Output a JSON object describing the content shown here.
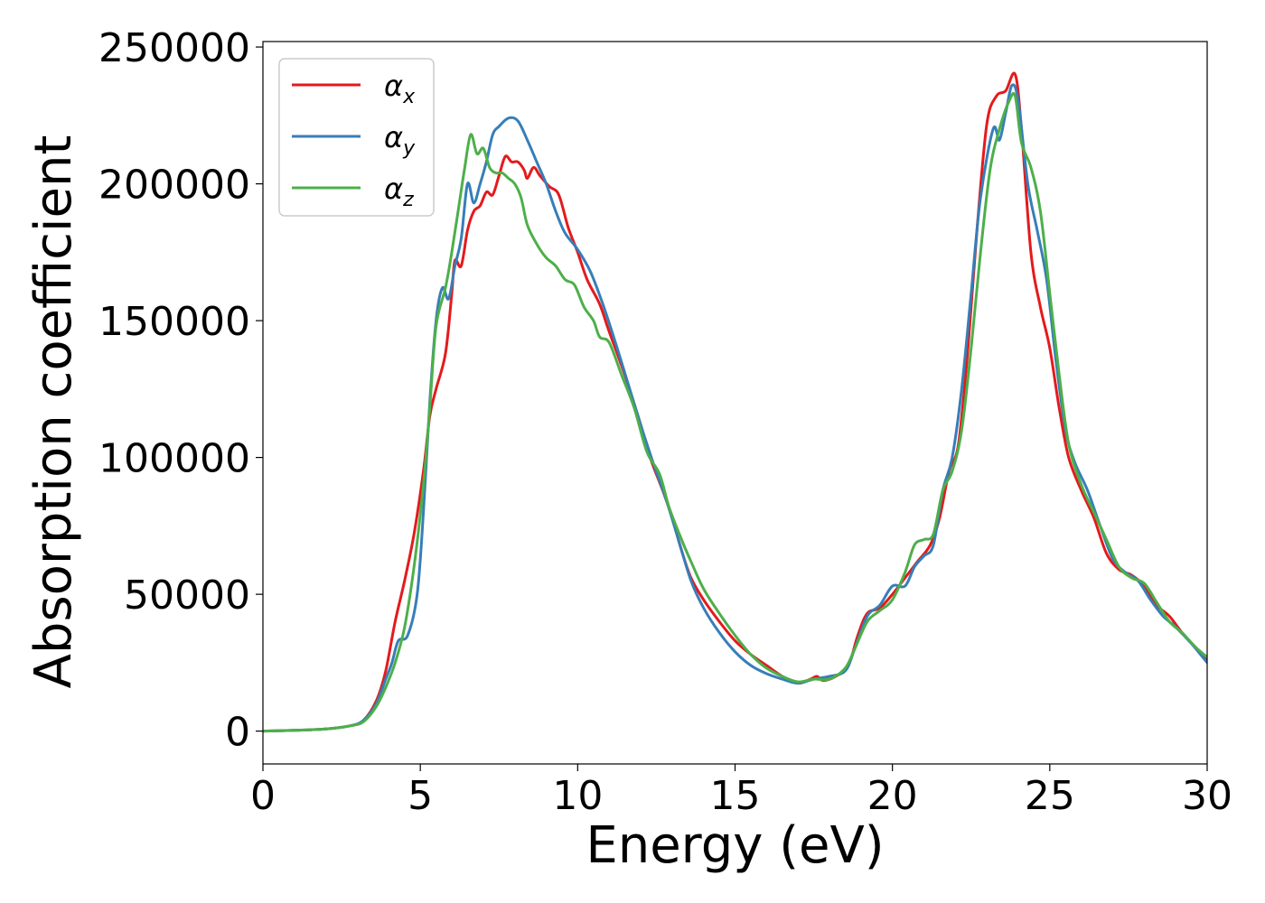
{
  "chart_data": {
    "type": "line",
    "xlabel": "Energy (eV)",
    "ylabel": "Absorption coefficient",
    "xlim": [
      0,
      30
    ],
    "ylim": [
      -12000,
      252000
    ],
    "xticks": [
      0,
      5,
      10,
      15,
      20,
      25,
      30
    ],
    "xtick_labels": [
      "0",
      "5",
      "10",
      "15",
      "20",
      "25",
      "30"
    ],
    "yticks": [
      0,
      50000,
      100000,
      150000,
      200000,
      250000
    ],
    "ytick_labels": [
      "0",
      "50000",
      "100000",
      "150000",
      "200000",
      "250000"
    ],
    "grid": false,
    "legend_position": "top-left",
    "series": [
      {
        "name": "α",
        "subscript": "x",
        "color": "#e41a1c",
        "points": [
          [
            0,
            0
          ],
          [
            1,
            300
          ],
          [
            2,
            800
          ],
          [
            2.8,
            2000
          ],
          [
            3.2,
            4000
          ],
          [
            3.6,
            11000
          ],
          [
            3.9,
            22000
          ],
          [
            4.2,
            40000
          ],
          [
            4.5,
            55000
          ],
          [
            4.8,
            72000
          ],
          [
            5.1,
            95000
          ],
          [
            5.3,
            115000
          ],
          [
            5.5,
            125000
          ],
          [
            5.8,
            138000
          ],
          [
            6.0,
            160000
          ],
          [
            6.1,
            172000
          ],
          [
            6.3,
            170000
          ],
          [
            6.5,
            183000
          ],
          [
            6.7,
            190000
          ],
          [
            6.9,
            192000
          ],
          [
            7.1,
            197000
          ],
          [
            7.3,
            196000
          ],
          [
            7.5,
            203000
          ],
          [
            7.7,
            210000
          ],
          [
            7.9,
            208000
          ],
          [
            8.1,
            208000
          ],
          [
            8.3,
            205000
          ],
          [
            8.4,
            202000
          ],
          [
            8.6,
            206000
          ],
          [
            8.8,
            203000
          ],
          [
            9.1,
            199000
          ],
          [
            9.4,
            196000
          ],
          [
            9.7,
            184000
          ],
          [
            10.0,
            175000
          ],
          [
            10.3,
            165000
          ],
          [
            10.7,
            156000
          ],
          [
            11.0,
            146000
          ],
          [
            11.5,
            130000
          ],
          [
            12.0,
            112000
          ],
          [
            12.3,
            100000
          ],
          [
            12.7,
            88000
          ],
          [
            13.0,
            78000
          ],
          [
            13.3,
            66000
          ],
          [
            13.6,
            56000
          ],
          [
            14.0,
            48000
          ],
          [
            14.5,
            40000
          ],
          [
            15.0,
            33000
          ],
          [
            15.5,
            28000
          ],
          [
            16.0,
            24000
          ],
          [
            16.5,
            20000
          ],
          [
            17.0,
            17500
          ],
          [
            17.4,
            19000
          ],
          [
            17.6,
            20000
          ],
          [
            17.8,
            18500
          ],
          [
            18.2,
            20000
          ],
          [
            18.6,
            24000
          ],
          [
            18.9,
            35000
          ],
          [
            19.2,
            43000
          ],
          [
            19.6,
            45000
          ],
          [
            20.0,
            50000
          ],
          [
            20.4,
            56000
          ],
          [
            20.8,
            62000
          ],
          [
            21.2,
            68000
          ],
          [
            21.5,
            78000
          ],
          [
            21.8,
            95000
          ],
          [
            22.1,
            105000
          ],
          [
            22.4,
            140000
          ],
          [
            22.7,
            185000
          ],
          [
            23.0,
            222000
          ],
          [
            23.3,
            232000
          ],
          [
            23.6,
            234000
          ],
          [
            23.9,
            240000
          ],
          [
            24.1,
            220000
          ],
          [
            24.4,
            175000
          ],
          [
            24.7,
            155000
          ],
          [
            25.0,
            140000
          ],
          [
            25.3,
            118000
          ],
          [
            25.6,
            100000
          ],
          [
            26.0,
            88000
          ],
          [
            26.4,
            78000
          ],
          [
            26.8,
            65000
          ],
          [
            27.2,
            59000
          ],
          [
            27.6,
            57000
          ],
          [
            28.0,
            53000
          ],
          [
            28.4,
            46000
          ],
          [
            28.8,
            42000
          ],
          [
            29.2,
            36000
          ],
          [
            29.6,
            31000
          ],
          [
            30.0,
            26000
          ]
        ]
      },
      {
        "name": "α",
        "subscript": "y",
        "color": "#377eb8",
        "points": [
          [
            0,
            0
          ],
          [
            1,
            300
          ],
          [
            2,
            800
          ],
          [
            2.8,
            2000
          ],
          [
            3.2,
            4000
          ],
          [
            3.6,
            10000
          ],
          [
            3.9,
            19000
          ],
          [
            4.1,
            25000
          ],
          [
            4.3,
            33000
          ],
          [
            4.6,
            35000
          ],
          [
            4.9,
            50000
          ],
          [
            5.1,
            80000
          ],
          [
            5.3,
            120000
          ],
          [
            5.5,
            150000
          ],
          [
            5.7,
            162000
          ],
          [
            5.9,
            158000
          ],
          [
            6.1,
            170000
          ],
          [
            6.3,
            180000
          ],
          [
            6.5,
            200000
          ],
          [
            6.7,
            193000
          ],
          [
            6.9,
            200000
          ],
          [
            7.1,
            208000
          ],
          [
            7.3,
            218000
          ],
          [
            7.5,
            221000
          ],
          [
            7.8,
            224000
          ],
          [
            8.1,
            223000
          ],
          [
            8.4,
            216000
          ],
          [
            8.7,
            208000
          ],
          [
            9.0,
            200000
          ],
          [
            9.3,
            190000
          ],
          [
            9.6,
            182000
          ],
          [
            10.0,
            176000
          ],
          [
            10.4,
            168000
          ],
          [
            10.8,
            156000
          ],
          [
            11.2,
            142000
          ],
          [
            11.6,
            127000
          ],
          [
            12.0,
            112000
          ],
          [
            12.4,
            98000
          ],
          [
            12.8,
            85000
          ],
          [
            13.2,
            70000
          ],
          [
            13.6,
            55000
          ],
          [
            14.0,
            45000
          ],
          [
            14.5,
            36000
          ],
          [
            15.0,
            29000
          ],
          [
            15.5,
            24000
          ],
          [
            16.0,
            21000
          ],
          [
            16.5,
            19000
          ],
          [
            17.0,
            17500
          ],
          [
            17.5,
            19000
          ],
          [
            18.0,
            20000
          ],
          [
            18.5,
            22000
          ],
          [
            18.8,
            30000
          ],
          [
            19.2,
            42000
          ],
          [
            19.6,
            46000
          ],
          [
            20.0,
            53000
          ],
          [
            20.4,
            53000
          ],
          [
            20.7,
            60000
          ],
          [
            21.0,
            64000
          ],
          [
            21.3,
            68000
          ],
          [
            21.6,
            88000
          ],
          [
            21.9,
            100000
          ],
          [
            22.2,
            125000
          ],
          [
            22.5,
            160000
          ],
          [
            22.8,
            195000
          ],
          [
            23.2,
            220000
          ],
          [
            23.4,
            216000
          ],
          [
            23.6,
            226000
          ],
          [
            23.8,
            236000
          ],
          [
            24.0,
            230000
          ],
          [
            24.3,
            200000
          ],
          [
            24.6,
            183000
          ],
          [
            24.9,
            165000
          ],
          [
            25.2,
            135000
          ],
          [
            25.5,
            110000
          ],
          [
            25.8,
            98000
          ],
          [
            26.2,
            88000
          ],
          [
            26.6,
            75000
          ],
          [
            27.0,
            63000
          ],
          [
            27.4,
            58000
          ],
          [
            27.8,
            55000
          ],
          [
            28.2,
            48000
          ],
          [
            28.6,
            42000
          ],
          [
            29.0,
            38000
          ],
          [
            29.5,
            32000
          ],
          [
            30.0,
            25000
          ]
        ]
      },
      {
        "name": "α",
        "subscript": "z",
        "color": "#4daf4a",
        "points": [
          [
            0,
            0
          ],
          [
            1,
            300
          ],
          [
            2,
            800
          ],
          [
            2.8,
            2000
          ],
          [
            3.2,
            3500
          ],
          [
            3.6,
            9000
          ],
          [
            3.9,
            16000
          ],
          [
            4.2,
            25000
          ],
          [
            4.5,
            38000
          ],
          [
            4.8,
            60000
          ],
          [
            5.1,
            90000
          ],
          [
            5.3,
            118000
          ],
          [
            5.5,
            148000
          ],
          [
            5.8,
            162000
          ],
          [
            6.0,
            175000
          ],
          [
            6.2,
            190000
          ],
          [
            6.4,
            205000
          ],
          [
            6.6,
            218000
          ],
          [
            6.8,
            211000
          ],
          [
            7.0,
            213000
          ],
          [
            7.2,
            206000
          ],
          [
            7.4,
            204000
          ],
          [
            7.6,
            204000
          ],
          [
            7.8,
            202000
          ],
          [
            8.0,
            200000
          ],
          [
            8.2,
            195000
          ],
          [
            8.4,
            185000
          ],
          [
            8.7,
            178000
          ],
          [
            9.0,
            173000
          ],
          [
            9.3,
            170000
          ],
          [
            9.6,
            165000
          ],
          [
            9.9,
            163000
          ],
          [
            10.2,
            155000
          ],
          [
            10.5,
            150000
          ],
          [
            10.7,
            144000
          ],
          [
            11.0,
            142000
          ],
          [
            11.4,
            130000
          ],
          [
            11.8,
            118000
          ],
          [
            12.2,
            102000
          ],
          [
            12.6,
            94000
          ],
          [
            12.9,
            82000
          ],
          [
            13.3,
            70000
          ],
          [
            13.6,
            62000
          ],
          [
            14.0,
            52000
          ],
          [
            14.5,
            43000
          ],
          [
            15.0,
            35000
          ],
          [
            15.5,
            28000
          ],
          [
            16.0,
            23000
          ],
          [
            16.5,
            20000
          ],
          [
            17.0,
            18000
          ],
          [
            17.5,
            19000
          ],
          [
            18.0,
            19000
          ],
          [
            18.5,
            23000
          ],
          [
            18.8,
            30000
          ],
          [
            19.2,
            40000
          ],
          [
            19.6,
            44000
          ],
          [
            20.0,
            48000
          ],
          [
            20.4,
            58000
          ],
          [
            20.7,
            68000
          ],
          [
            21.0,
            70000
          ],
          [
            21.3,
            72000
          ],
          [
            21.6,
            88000
          ],
          [
            21.9,
            95000
          ],
          [
            22.2,
            110000
          ],
          [
            22.5,
            140000
          ],
          [
            22.8,
            175000
          ],
          [
            23.1,
            205000
          ],
          [
            23.4,
            220000
          ],
          [
            23.7,
            230000
          ],
          [
            23.9,
            232000
          ],
          [
            24.1,
            215000
          ],
          [
            24.4,
            206000
          ],
          [
            24.7,
            190000
          ],
          [
            25.0,
            160000
          ],
          [
            25.3,
            130000
          ],
          [
            25.6,
            105000
          ],
          [
            26.0,
            90000
          ],
          [
            26.4,
            80000
          ],
          [
            26.8,
            70000
          ],
          [
            27.2,
            60000
          ],
          [
            27.6,
            56000
          ],
          [
            28.0,
            54000
          ],
          [
            28.4,
            47000
          ],
          [
            28.8,
            40000
          ],
          [
            29.2,
            36000
          ],
          [
            29.6,
            31000
          ],
          [
            30.0,
            27000
          ]
        ]
      }
    ]
  }
}
